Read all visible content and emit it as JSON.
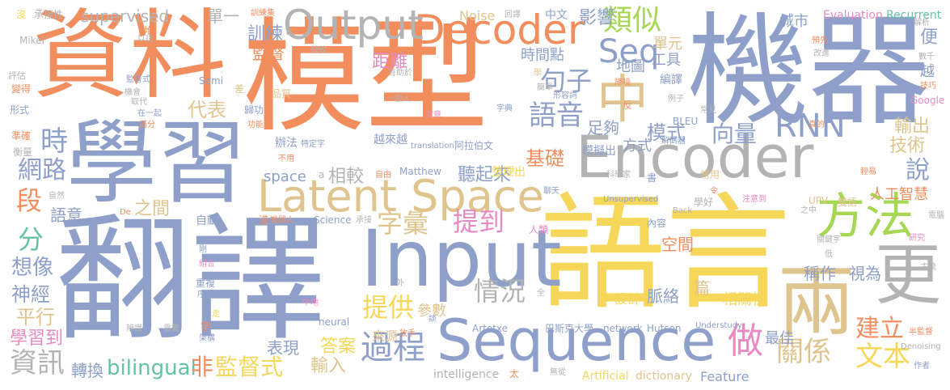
{
  "colors": {
    "orange": "#f28e5e",
    "blue": "#8ea0c9",
    "gold": "#f6d75a",
    "tan": "#e0c48e",
    "green": "#66c2a5",
    "gray": "#b3b3b3",
    "pink": "#e78ac3",
    "lime": "#a6d854"
  },
  "words": [
    {
      "text": "機器",
      "color": "blue"
    },
    {
      "text": "翻譯",
      "color": "blue"
    },
    {
      "text": "語言",
      "color": "gold"
    },
    {
      "text": "資料",
      "color": "orange"
    },
    {
      "text": "模型",
      "color": "orange"
    },
    {
      "text": "學習",
      "color": "blue"
    },
    {
      "text": "Encoder",
      "color": "gray"
    },
    {
      "text": "Input",
      "color": "blue"
    },
    {
      "text": "Sequence",
      "color": "blue"
    },
    {
      "text": "Latent Space",
      "color": "tan"
    },
    {
      "text": "Decoder",
      "color": "orange"
    },
    {
      "text": "Output",
      "color": "gray"
    },
    {
      "text": "方法",
      "color": "lime"
    },
    {
      "text": "兩",
      "color": "tan"
    },
    {
      "text": "更",
      "color": "gray"
    },
    {
      "text": "中",
      "color": "tan"
    },
    {
      "text": "Seq",
      "color": "blue"
    },
    {
      "text": "類似",
      "color": "lime"
    },
    {
      "text": "句子",
      "color": "blue"
    },
    {
      "text": "語音",
      "color": "blue"
    },
    {
      "text": "RNN",
      "color": "blue"
    },
    {
      "text": "向量",
      "color": "blue"
    },
    {
      "text": "字彙",
      "color": "tan"
    },
    {
      "text": "提到",
      "color": "pink"
    },
    {
      "text": "提供",
      "color": "gold"
    },
    {
      "text": "情況",
      "color": "gray"
    },
    {
      "text": "過程",
      "color": "blue"
    },
    {
      "text": "做",
      "color": "pink"
    },
    {
      "text": "關係",
      "color": "tan"
    },
    {
      "text": "文本",
      "color": "gold"
    },
    {
      "text": "建立",
      "color": "orange"
    },
    {
      "text": "說",
      "color": "blue"
    },
    {
      "text": "技術",
      "color": "tan"
    },
    {
      "text": "輸出",
      "color": "tan"
    },
    {
      "text": "時",
      "color": "blue"
    },
    {
      "text": "網路",
      "color": "blue"
    },
    {
      "text": "段",
      "color": "orange"
    },
    {
      "text": "分",
      "color": "green"
    },
    {
      "text": "想像",
      "color": "blue"
    },
    {
      "text": "神經",
      "color": "blue"
    },
    {
      "text": "平行",
      "color": "tan"
    },
    {
      "text": "學習到",
      "color": "pink"
    },
    {
      "text": "資訊",
      "color": "gray"
    },
    {
      "text": "轉換",
      "color": "blue"
    },
    {
      "text": "bilingual",
      "color": "green"
    },
    {
      "text": "非",
      "color": "orange"
    },
    {
      "text": "監督式",
      "color": "gold"
    },
    {
      "text": "輸入",
      "color": "tan"
    },
    {
      "text": "答案",
      "color": "gold"
    },
    {
      "text": "表現",
      "color": "blue"
    },
    {
      "text": "來源",
      "color": "tan"
    },
    {
      "text": "基礎",
      "color": "orange"
    },
    {
      "text": "聽起來",
      "color": "blue"
    },
    {
      "text": "相較",
      "color": "gray"
    },
    {
      "text": "space",
      "color": "blue"
    },
    {
      "text": "代表",
      "color": "tan"
    },
    {
      "text": "語意",
      "color": "blue"
    },
    {
      "text": "之間",
      "color": "tan"
    },
    {
      "text": "訓練",
      "color": "blue"
    },
    {
      "text": "監督",
      "color": "orange"
    },
    {
      "text": "supervised",
      "color": "gray"
    },
    {
      "text": "單一",
      "color": "gray"
    },
    {
      "text": "距離",
      "color": "pink"
    },
    {
      "text": "影響",
      "color": "blue"
    },
    {
      "text": "時間點",
      "color": "blue"
    },
    {
      "text": "工具",
      "color": "blue"
    },
    {
      "text": "地圖",
      "color": "blue"
    },
    {
      "text": "單元",
      "color": "tan"
    },
    {
      "text": "城市",
      "color": "blue"
    },
    {
      "text": "足夠",
      "color": "blue"
    },
    {
      "text": "模式",
      "color": "blue"
    },
    {
      "text": "方式",
      "color": "blue"
    },
    {
      "text": "人工智慧",
      "color": "orange"
    },
    {
      "text": "稱作",
      "color": "blue"
    },
    {
      "text": "視為",
      "color": "blue"
    },
    {
      "text": "空間",
      "color": "orange"
    },
    {
      "text": "脈絡",
      "color": "blue"
    },
    {
      "text": "篇",
      "color": "tan"
    },
    {
      "text": "設計",
      "color": "gold"
    },
    {
      "text": "相關性",
      "color": "gold"
    },
    {
      "text": "最佳",
      "color": "blue"
    },
    {
      "text": "參數",
      "color": "tan"
    },
    {
      "text": "Feature",
      "color": "blue"
    },
    {
      "text": "dictionary",
      "color": "tan"
    },
    {
      "text": "Artificial",
      "color": "gold"
    },
    {
      "text": "intelligence",
      "color": "gray"
    },
    {
      "text": "Noise",
      "color": "tan"
    },
    {
      "text": "中文",
      "color": "blue"
    },
    {
      "text": "Evaluation",
      "color": "pink"
    },
    {
      "text": "Recurrent",
      "color": "green"
    },
    {
      "text": "便",
      "color": "blue"
    },
    {
      "text": "越",
      "color": "blue"
    },
    {
      "text": "巴斯克大學",
      "color": "blue"
    },
    {
      "text": "network",
      "color": "blue"
    },
    {
      "text": "Hutson",
      "color": "blue"
    },
    {
      "text": "Artetxe",
      "color": "blue"
    },
    {
      "text": "Matthew",
      "color": "blue"
    },
    {
      "text": "阿拉伯文",
      "color": "blue"
    },
    {
      "text": "越來越",
      "color": "blue"
    },
    {
      "text": "辦法",
      "color": "blue"
    },
    {
      "text": "編譯",
      "color": "blue"
    },
    {
      "text": "模擬出",
      "color": "blue"
    },
    {
      "text": "整理出",
      "color": "gold"
    },
    {
      "text": "人類",
      "color": "pink"
    },
    {
      "text": "自動",
      "color": "blue"
    },
    {
      "text": "Science",
      "color": "blue"
    },
    {
      "text": "neural",
      "color": "blue"
    },
    {
      "text": "Understudy",
      "color": "blue"
    },
    {
      "text": "Unsupervised",
      "color": "blue"
    },
    {
      "text": "translation",
      "color": "blue"
    },
    {
      "text": "BLEU",
      "color": "blue"
    },
    {
      "text": "Semi",
      "color": "blue"
    },
    {
      "text": "Google",
      "color": "pink"
    },
    {
      "text": "Mikel",
      "color": "gray"
    },
    {
      "text": "UPV",
      "color": "tan"
    },
    {
      "text": "Back",
      "color": "gray"
    },
    {
      "text": "Denoising",
      "color": "gray"
    },
    {
      "text": "承接性",
      "color": "gray"
    },
    {
      "text": "訓練集",
      "color": "orange"
    },
    {
      "text": "沒",
      "color": "gold"
    },
    {
      "text": "評估",
      "color": "gray"
    },
    {
      "text": "變得",
      "color": "orange"
    },
    {
      "text": "形式",
      "color": "blue"
    },
    {
      "text": "準確",
      "color": "orange"
    },
    {
      "text": "衡量",
      "color": "gray"
    },
    {
      "text": "差",
      "color": "tan"
    },
    {
      "text": "歸功",
      "color": "blue"
    },
    {
      "text": "品質",
      "color": "tan"
    },
    {
      "text": "一般人",
      "color": "gray"
    },
    {
      "text": "字典",
      "color": "blue"
    },
    {
      "text": "文章",
      "color": "pink"
    },
    {
      "text": "解碼器",
      "color": "blue"
    },
    {
      "text": "常見",
      "color": "gray"
    },
    {
      "text": "真的",
      "color": "orange"
    },
    {
      "text": "常用",
      "color": "tan"
    },
    {
      "text": "雙語",
      "color": "tan"
    },
    {
      "text": "電腦",
      "color": "gray"
    },
    {
      "text": "研究",
      "color": "pink"
    },
    {
      "text": "主流",
      "color": "gray"
    },
    {
      "text": "半監督",
      "color": "orange"
    },
    {
      "text": "作者",
      "color": "blue"
    },
    {
      "text": "關鍵字",
      "color": "gray"
    },
    {
      "text": "低",
      "color": "gray"
    },
    {
      "text": "書",
      "color": "blue"
    },
    {
      "text": "學好",
      "color": "gray"
    },
    {
      "text": "內容",
      "color": "blue"
    },
    {
      "text": "預先",
      "color": "orange"
    },
    {
      "text": "改進",
      "color": "gray"
    },
    {
      "text": "數千",
      "color": "gray"
    },
    {
      "text": "解析",
      "color": "gray"
    },
    {
      "text": "技巧",
      "color": "orange"
    },
    {
      "text": "例子",
      "color": "gray"
    },
    {
      "text": "降噪",
      "color": "orange"
    },
    {
      "text": "反",
      "color": "orange"
    },
    {
      "text": "簡單",
      "color": "gray"
    },
    {
      "text": "形容詞",
      "color": "blue"
    },
    {
      "text": "回譯",
      "color": "gray"
    },
    {
      "text": "學",
      "color": "tan"
    },
    {
      "text": "有助於",
      "color": "gray"
    },
    {
      "text": "微軟",
      "color": "gray"
    },
    {
      "text": "堆",
      "color": "orange"
    },
    {
      "text": "以往",
      "color": "gray"
    },
    {
      "text": "監督式",
      "color": "blue"
    },
    {
      "text": "機會",
      "color": "gray"
    },
    {
      "text": "取代",
      "color": "gray"
    },
    {
      "text": "在一起",
      "color": "blue"
    },
    {
      "text": "滿分",
      "color": "orange"
    },
    {
      "text": "功能",
      "color": "orange"
    },
    {
      "text": "不用",
      "color": "orange"
    },
    {
      "text": "特定字",
      "color": "blue"
    },
    {
      "text": "自由",
      "color": "orange"
    },
    {
      "text": "自然",
      "color": "gray"
    },
    {
      "text": "淺",
      "color": "orange"
    },
    {
      "text": "機器人",
      "color": "orange"
    },
    {
      "text": "承接",
      "color": "gray"
    },
    {
      "text": "剛",
      "color": "blue"
    },
    {
      "text": "組合",
      "color": "pink"
    },
    {
      "text": "重複",
      "color": "blue"
    },
    {
      "text": "序列",
      "color": "blue"
    },
    {
      "text": "字",
      "color": "orange"
    },
    {
      "text": "架構",
      "color": "blue"
    },
    {
      "text": "辨識",
      "color": "gray"
    },
    {
      "text": "震驚",
      "color": "gray"
    },
    {
      "text": "外",
      "color": "gray"
    },
    {
      "text": "中地",
      "color": "pink"
    },
    {
      "text": "全",
      "color": "gray"
    },
    {
      "text": "放手",
      "color": "orange"
    },
    {
      "text": "談",
      "color": "blue"
    },
    {
      "text": "太",
      "color": "orange"
    },
    {
      "text": "無從",
      "color": "gray"
    },
    {
      "text": "科學家",
      "color": "gray"
    },
    {
      "text": "注意到",
      "color": "pink"
    },
    {
      "text": "之中",
      "color": "gray"
    },
    {
      "text": "聊天",
      "color": "blue"
    },
    {
      "text": "輕易",
      "color": "orange"
    },
    {
      "text": "令",
      "color": "orange"
    },
    {
      "text": "a",
      "color": "gray"
    },
    {
      "text": "De",
      "color": "orange"
    },
    {
      "text": "走",
      "color": "gold"
    }
  ]
}
